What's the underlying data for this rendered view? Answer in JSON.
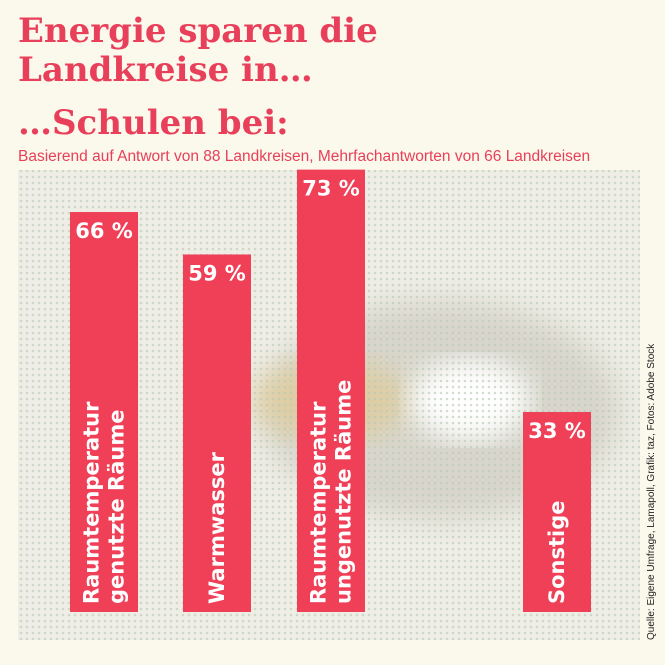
{
  "chart_data": {
    "type": "bar",
    "title": [
      "Energie sparen die",
      "Landkreise in…"
    ],
    "subtitle": "…Schulen bei:",
    "note": "Basierend auf Antwort von 88 Landkreisen, Mehrfachantworten von 66 Landkreisen",
    "source": "Quelle: Eigene Umfrage, Lamapoll, Grafik: taz, Fotos: Adobe Stock",
    "categories": [
      [
        "Raumtemperatur",
        "genutzte Räume"
      ],
      [
        "Warmwasser"
      ],
      [
        "Raumtemperatur",
        "ungenutzte Räume"
      ],
      [
        "Sonstige"
      ]
    ],
    "values": [
      66,
      59,
      73,
      33
    ],
    "value_labels": [
      "66 %",
      "59 %",
      "73 %",
      "33 %"
    ],
    "color": "#ef4058",
    "ylim": [
      0,
      100
    ]
  }
}
